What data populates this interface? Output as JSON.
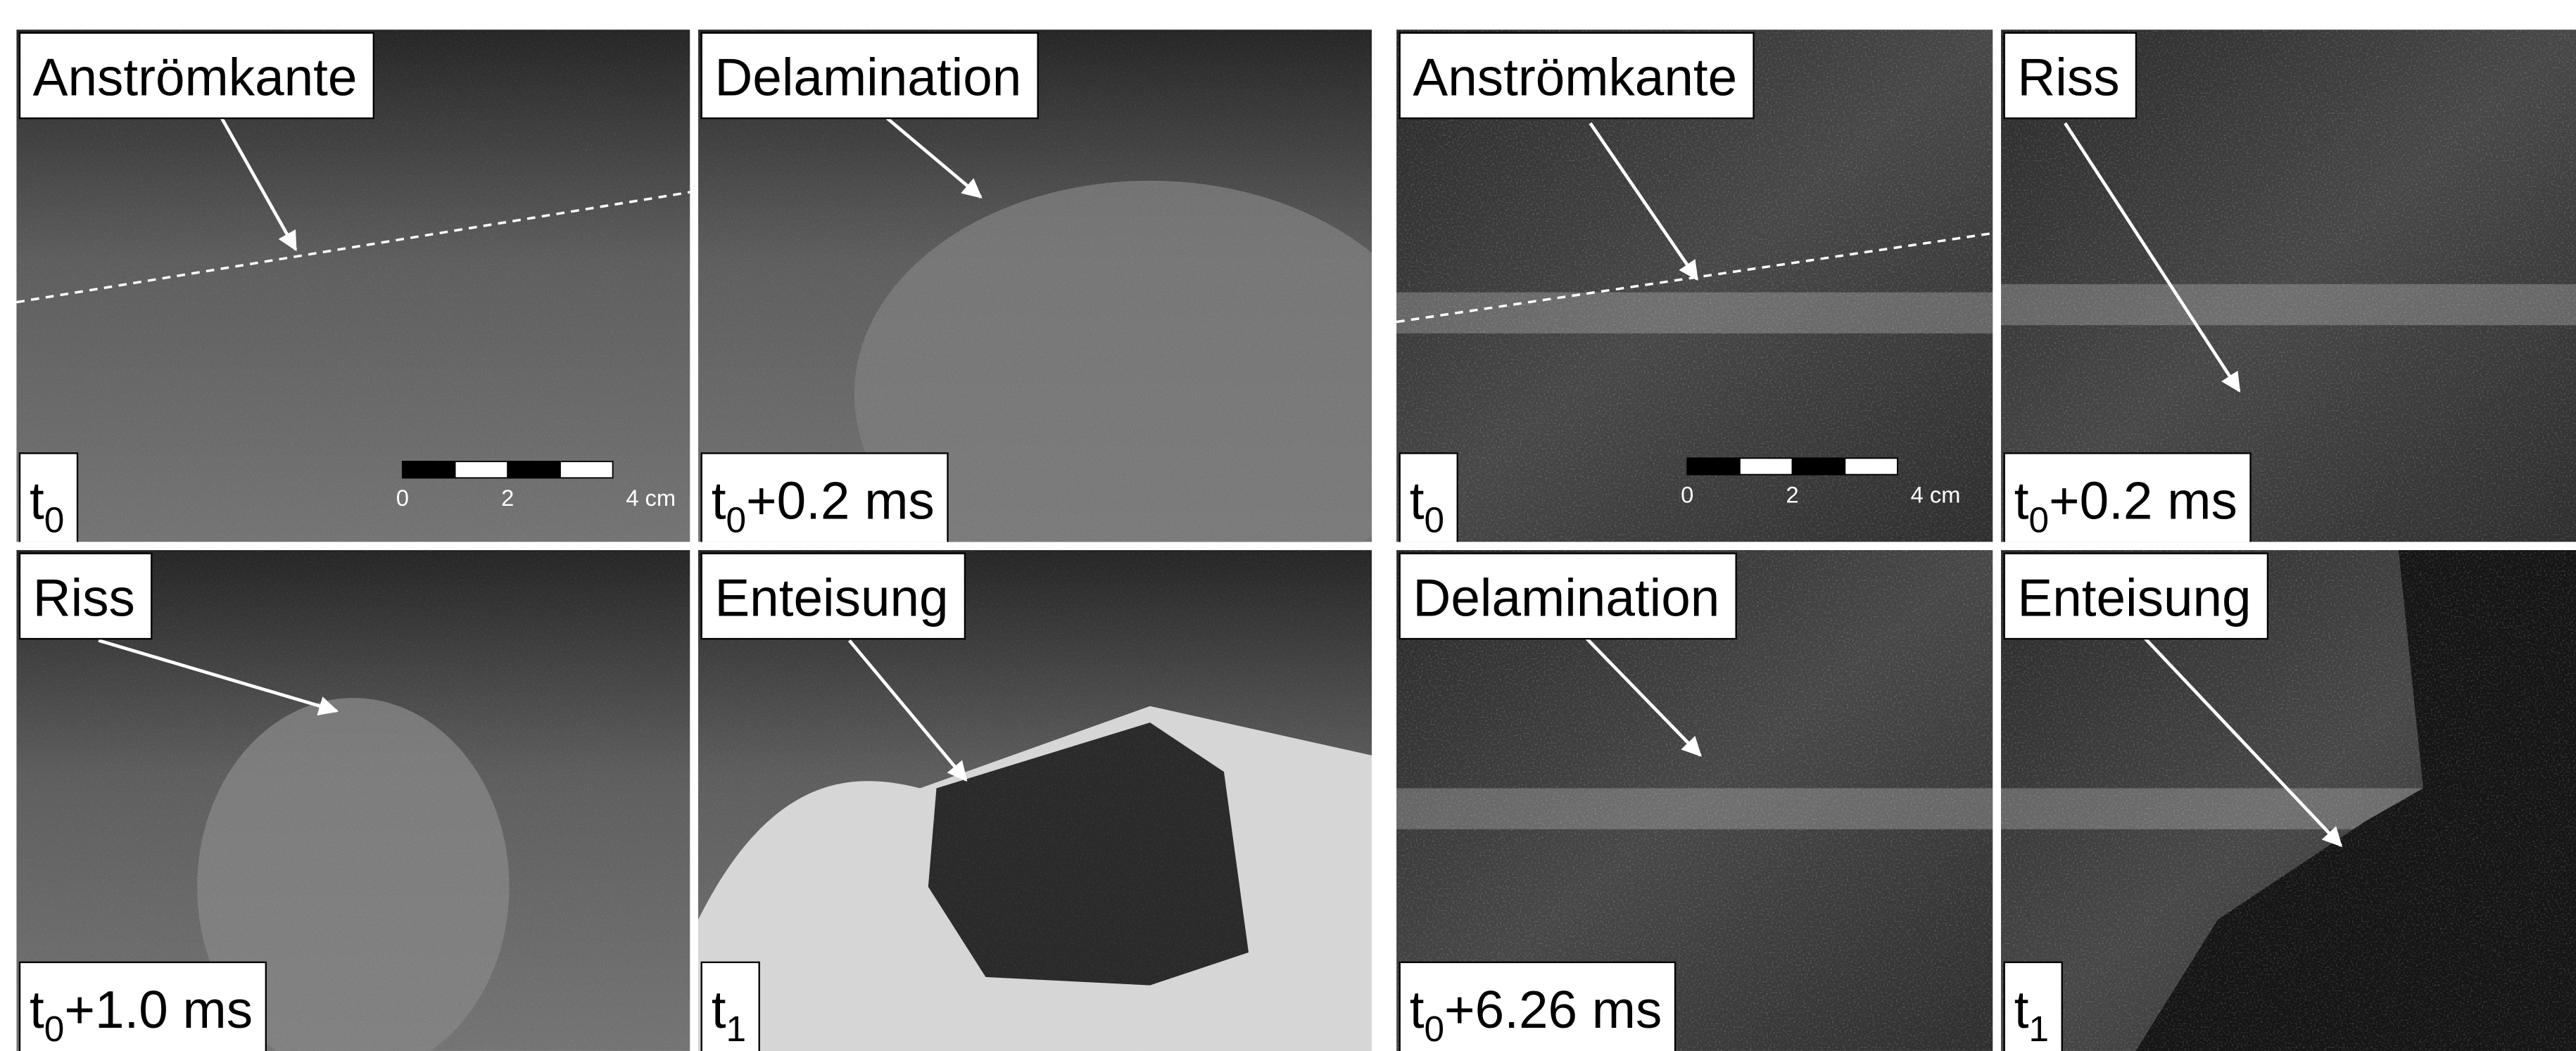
{
  "panels": [
    {
      "label": "Anströmkante",
      "time": {
        "base": "t",
        "sub": "0"
      },
      "scale_bar": {
        "labels": [
          "0",
          "2",
          "4 cm"
        ]
      }
    },
    {
      "label": "Delamination",
      "time": {
        "base": "t",
        "sub": "0",
        "suffix": "+0.2 ms"
      }
    },
    {
      "label": "Riss",
      "time": {
        "base": "t",
        "sub": "0",
        "suffix": "+1.0 ms"
      }
    },
    {
      "label": "Enteisung",
      "time": {
        "base": "t",
        "sub": "1"
      }
    },
    {
      "label": "Anströmkante",
      "time": {
        "base": "t",
        "sub": "0"
      },
      "scale_bar": {
        "labels": [
          "0",
          "2",
          "4 cm"
        ]
      }
    },
    {
      "label": "Riss",
      "time": {
        "base": "t",
        "sub": "0",
        "suffix": "+0.2 ms"
      }
    },
    {
      "label": "Delamination",
      "time": {
        "base": "t",
        "sub": "0",
        "suffix": "+6.26 ms"
      }
    },
    {
      "label": "Enteisung",
      "time": {
        "base": "t",
        "sub": "1"
      }
    }
  ]
}
